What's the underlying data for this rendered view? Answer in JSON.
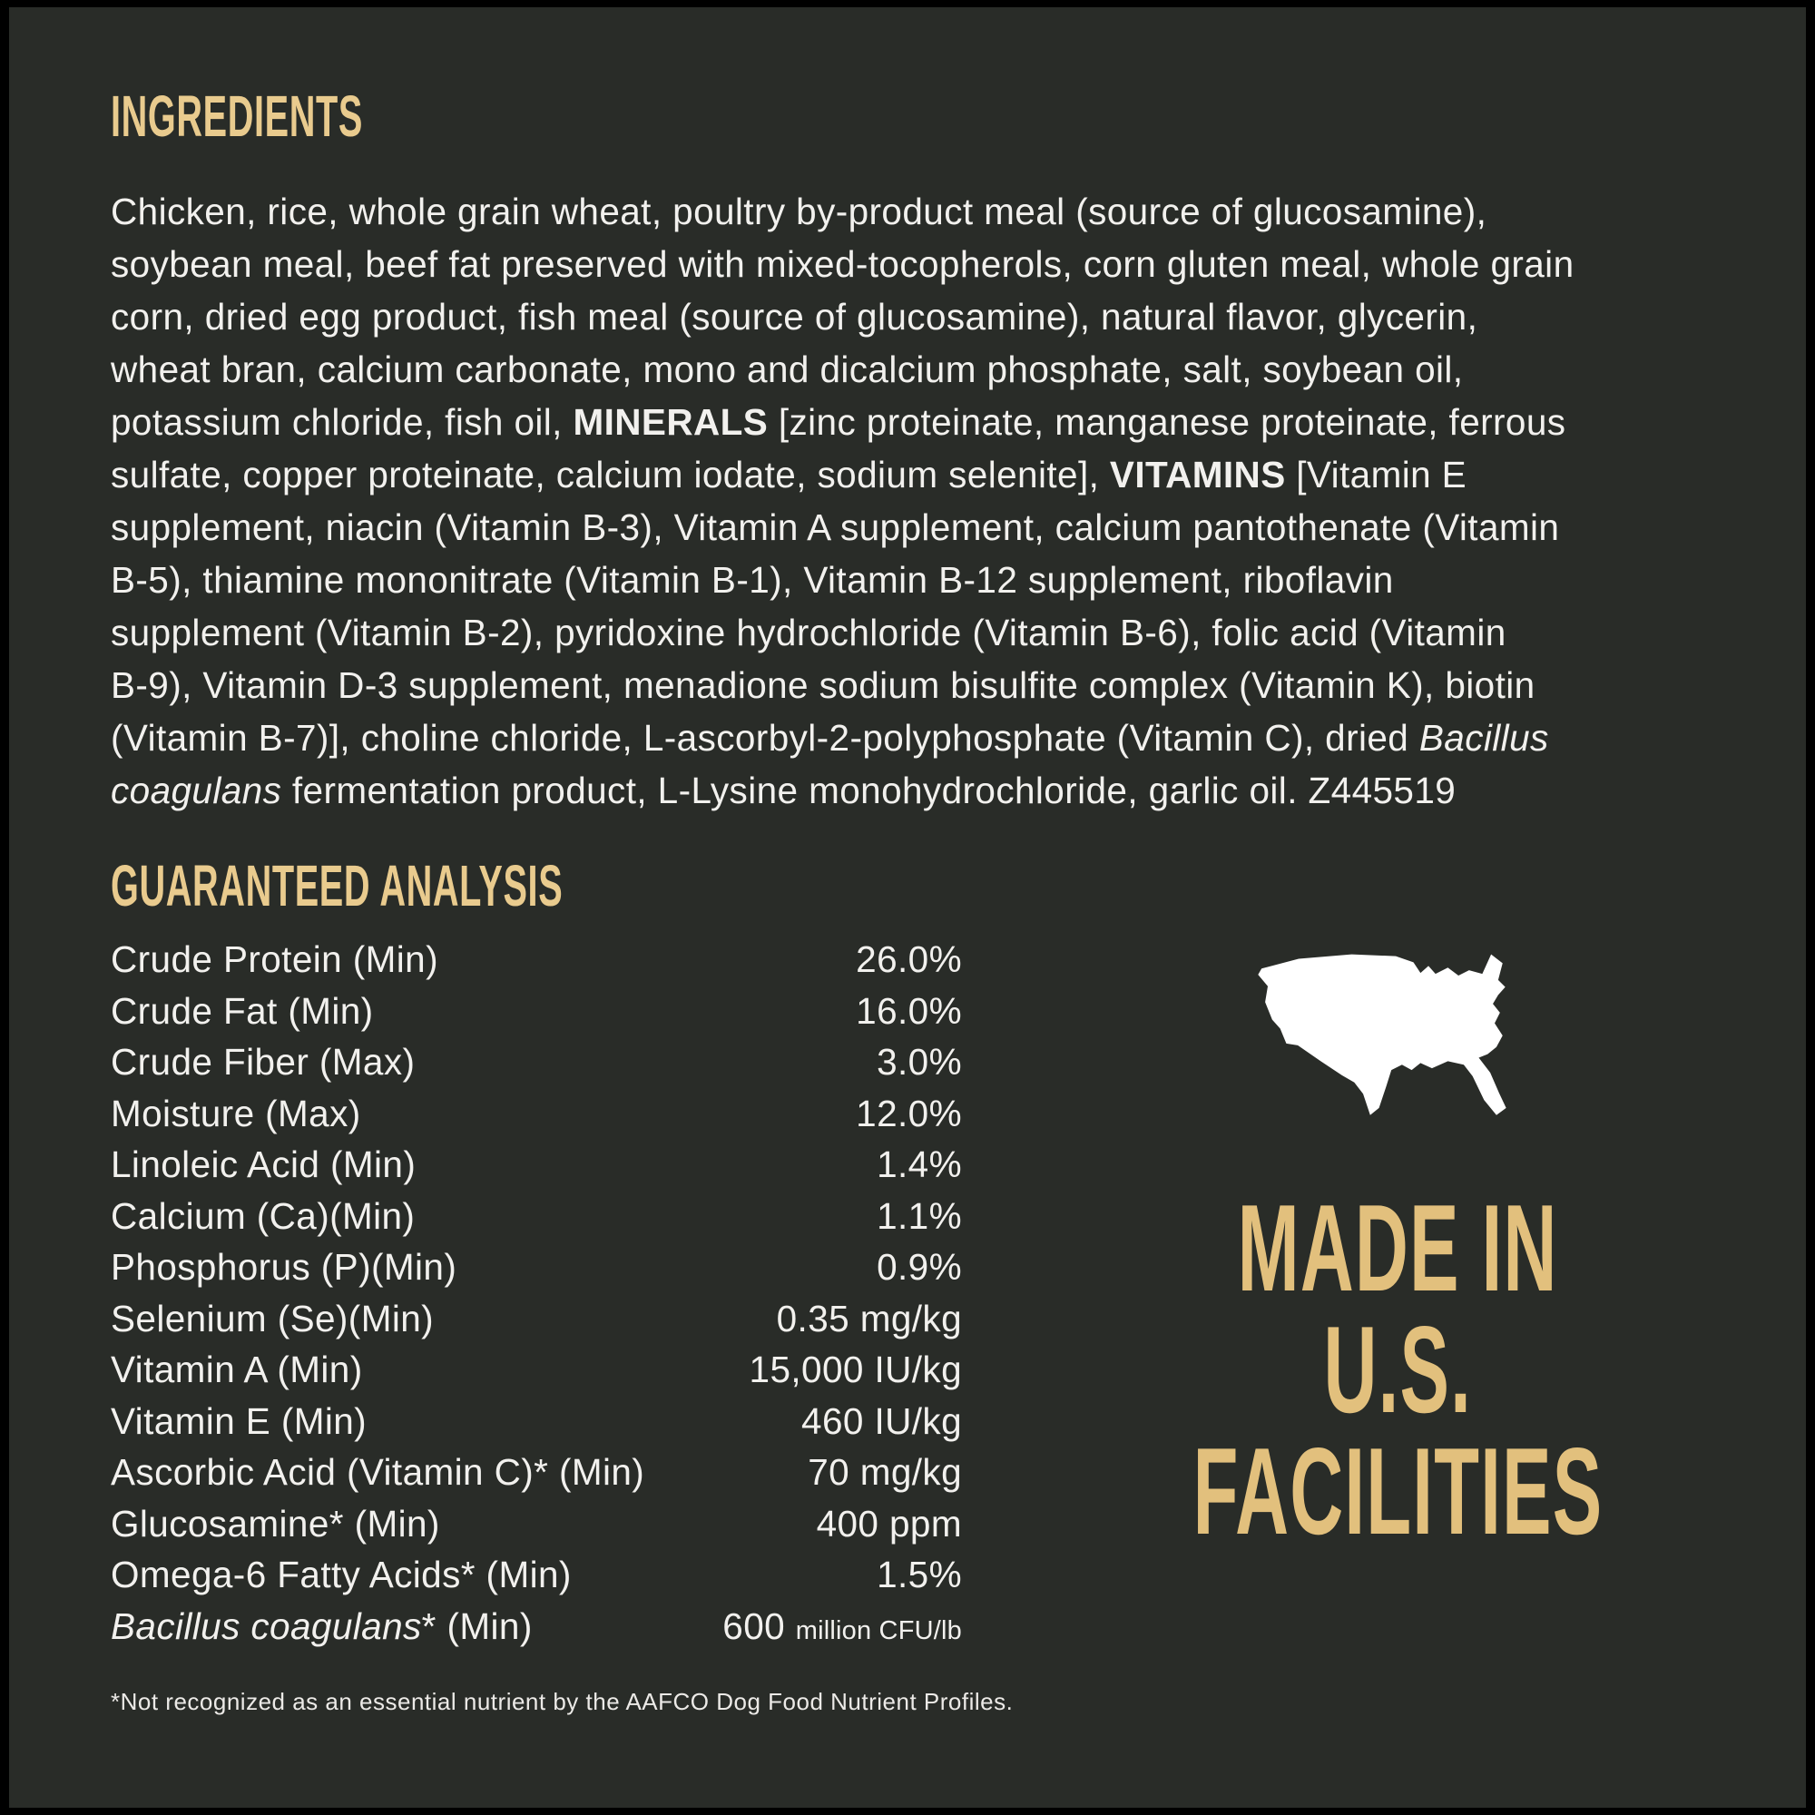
{
  "colors": {
    "background": "#292c28",
    "frame": "#000000",
    "heading_gold": "#e9cb8e",
    "madein_gold": "#e2c07d",
    "body_text": "#f2f1ee",
    "map_white": "#ffffff"
  },
  "ingredients": {
    "title": "INGREDIENTS",
    "lines": [
      [
        {
          "t": "Chicken, rice, whole grain wheat, poultry by-product meal (source of glucosamine),"
        }
      ],
      [
        {
          "t": "soybean meal, beef fat preserved with mixed-tocopherols, corn gluten meal, whole grain"
        }
      ],
      [
        {
          "t": "corn, dried egg product, fish meal (source of glucosamine), natural flavor, glycerin,"
        }
      ],
      [
        {
          "t": "wheat bran, calcium carbonate, mono and dicalcium phosphate, salt, soybean oil,"
        }
      ],
      [
        {
          "t": "potassium chloride, fish oil, "
        },
        {
          "t": "MINERALS",
          "b": true
        },
        {
          "t": " [zinc proteinate, manganese proteinate, ferrous"
        }
      ],
      [
        {
          "t": "sulfate, copper proteinate, calcium iodate, sodium selenite], "
        },
        {
          "t": "VITAMINS",
          "b": true
        },
        {
          "t": " [Vitamin E"
        }
      ],
      [
        {
          "t": "supplement, niacin (Vitamin B-3), Vitamin A supplement, calcium pantothenate (Vitamin"
        }
      ],
      [
        {
          "t": "B-5), thiamine mononitrate (Vitamin B-1), Vitamin B-12 supplement, riboflavin"
        }
      ],
      [
        {
          "t": "supplement (Vitamin B-2), pyridoxine hydrochloride (Vitamin B-6), folic acid (Vitamin"
        }
      ],
      [
        {
          "t": "B-9), Vitamin D-3 supplement, menadione sodium bisulfite complex (Vitamin K), biotin"
        }
      ],
      [
        {
          "t": "(Vitamin B-7)], choline chloride, L-ascorbyl-2-polyphosphate (Vitamin C), dried "
        },
        {
          "t": "Bacillus",
          "i": true
        }
      ],
      [
        {
          "t": "coagulans",
          "i": true
        },
        {
          "t": " fermentation product, L-Lysine monohydrochloride, garlic oil. Z445519"
        }
      ]
    ]
  },
  "analysis": {
    "title": "GUARANTEED ANALYSIS",
    "rows": [
      {
        "label": [
          {
            "t": "Crude Protein (Min)"
          }
        ],
        "value": [
          {
            "t": "26.0%"
          }
        ]
      },
      {
        "label": [
          {
            "t": "Crude Fat (Min)"
          }
        ],
        "value": [
          {
            "t": "16.0%"
          }
        ]
      },
      {
        "label": [
          {
            "t": "Crude Fiber (Max)"
          }
        ],
        "value": [
          {
            "t": "3.0%"
          }
        ]
      },
      {
        "label": [
          {
            "t": "Moisture (Max)"
          }
        ],
        "value": [
          {
            "t": "12.0%"
          }
        ]
      },
      {
        "label": [
          {
            "t": "Linoleic Acid (Min)"
          }
        ],
        "value": [
          {
            "t": "1.4%"
          }
        ]
      },
      {
        "label": [
          {
            "t": "Calcium (Ca)(Min)"
          }
        ],
        "value": [
          {
            "t": "1.1%"
          }
        ]
      },
      {
        "label": [
          {
            "t": "Phosphorus (P)(Min)"
          }
        ],
        "value": [
          {
            "t": "0.9%"
          }
        ]
      },
      {
        "label": [
          {
            "t": "Selenium (Se)(Min)"
          }
        ],
        "value": [
          {
            "t": "0.35 mg/kg"
          }
        ]
      },
      {
        "label": [
          {
            "t": "Vitamin A (Min)"
          }
        ],
        "value": [
          {
            "t": "15,000 IU/kg"
          }
        ]
      },
      {
        "label": [
          {
            "t": "Vitamin E (Min)"
          }
        ],
        "value": [
          {
            "t": "460 IU/kg"
          }
        ]
      },
      {
        "label": [
          {
            "t": "Ascorbic Acid (Vitamin C)* (Min)"
          }
        ],
        "value": [
          {
            "t": "70 mg/kg"
          }
        ]
      },
      {
        "label": [
          {
            "t": "Glucosamine* (Min)"
          }
        ],
        "value": [
          {
            "t": "400 ppm"
          }
        ]
      },
      {
        "label": [
          {
            "t": "Omega-6 Fatty Acids* (Min)"
          }
        ],
        "value": [
          {
            "t": "1.5%"
          }
        ]
      },
      {
        "label": [
          {
            "t": "Bacillus coagulans",
            "i": true
          },
          {
            "t": "* (Min)"
          }
        ],
        "value": [
          {
            "t": "600 "
          },
          {
            "t": "million CFU/lb",
            "sm": true
          }
        ]
      }
    ],
    "footnote": "*Not recognized as an essential nutrient by the AAFCO Dog Food Nutrient Profiles."
  },
  "made_in": {
    "icon": "usa-map-icon",
    "lines": [
      "MADE IN",
      "U.S.",
      "FACILITIES"
    ]
  }
}
